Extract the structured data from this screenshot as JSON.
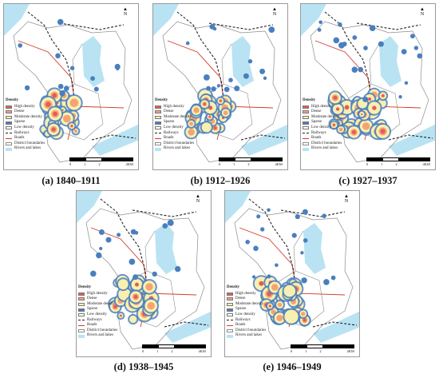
{
  "legend": {
    "title": "Density",
    "classes": [
      {
        "label": "High density",
        "color": "#e85a5a"
      },
      {
        "label": "Dense",
        "color": "#f5a373"
      },
      {
        "label": "Moderate density",
        "color": "#f8f0b0"
      },
      {
        "label": "Sparse",
        "color": "#4a7fbf"
      },
      {
        "label": "Low density",
        "color": "#ffffff"
      }
    ],
    "lines": [
      {
        "label": "Railways",
        "style": "railway"
      },
      {
        "label": "Roads",
        "style": "road"
      },
      {
        "label": "District boundaries",
        "style": "boundary"
      },
      {
        "label": "Rivers and lakes",
        "style": "water"
      }
    ]
  },
  "north_label": "N",
  "scale": {
    "ticks": [
      "0",
      "1",
      "2",
      "",
      "4"
    ],
    "unit": "KM"
  },
  "panels": [
    {
      "caption": "(a) 1840–1911",
      "intensity": 0.45
    },
    {
      "caption": "(b) 1912–1926",
      "intensity": 0.65
    },
    {
      "caption": "(c) 1927–1937",
      "intensity": 0.9
    },
    {
      "caption": "(d) 1938–1945",
      "intensity": 0.55
    },
    {
      "caption": "(e) 1946–1949",
      "intensity": 0.75
    }
  ],
  "colors": {
    "water": "#b9e3f3",
    "road": "#d23c2a",
    "railway": "#222222",
    "boundary": "#8c8c8c"
  }
}
